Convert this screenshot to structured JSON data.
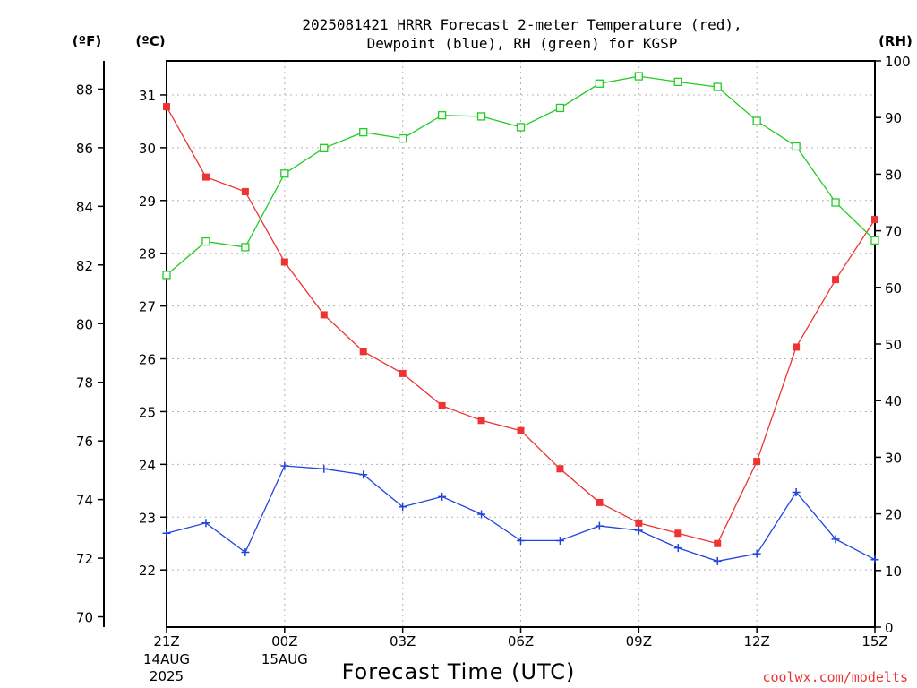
{
  "chart_data": {
    "type": "line",
    "title": "2025081421 HRRR Forecast 2-meter Temperature (red),",
    "subtitle": "Dewpoint (blue), RH (green) for KGSP",
    "xlabel": "Forecast Time (UTC)",
    "credit": "coolwx.com/modelts",
    "units": {
      "left_f": "(ºF)",
      "left_c": "(ºC)",
      "right_rh": "(RH)"
    },
    "x_hours": [
      0,
      1,
      2,
      3,
      4,
      5,
      6,
      7,
      8,
      9,
      10,
      11,
      12,
      13,
      14,
      15,
      16,
      17,
      18
    ],
    "x_ticks": [
      {
        "hour": 0,
        "label": "21Z",
        "sub1": "14AUG",
        "sub2": "2025"
      },
      {
        "hour": 3,
        "label": "00Z",
        "sub1": "15AUG",
        "sub2": ""
      },
      {
        "hour": 6,
        "label": "03Z",
        "sub1": "",
        "sub2": ""
      },
      {
        "hour": 9,
        "label": "06Z",
        "sub1": "",
        "sub2": ""
      },
      {
        "hour": 12,
        "label": "09Z",
        "sub1": "",
        "sub2": ""
      },
      {
        "hour": 15,
        "label": "12Z",
        "sub1": "",
        "sub2": ""
      },
      {
        "hour": 18,
        "label": "15Z",
        "sub1": "",
        "sub2": ""
      }
    ],
    "f_ticks": [
      70,
      72,
      74,
      76,
      78,
      80,
      82,
      84,
      86,
      88
    ],
    "c_ticks": [
      22,
      23,
      24,
      25,
      26,
      27,
      28,
      29,
      30,
      31
    ],
    "rh_ticks": [
      0,
      10,
      20,
      30,
      40,
      50,
      60,
      70,
      80,
      90,
      100
    ],
    "temp_range_f": [
      69.65,
      88.96
    ],
    "rh_range": [
      0,
      100
    ],
    "grid": true,
    "series": [
      {
        "name": "Temperature",
        "unit": "F",
        "color": "#ee3333",
        "marker": "filled-square",
        "values": [
          87.4,
          85.0,
          84.5,
          82.1,
          80.3,
          79.05,
          78.3,
          77.2,
          76.7,
          76.35,
          75.05,
          73.9,
          73.2,
          72.85,
          72.5,
          75.3,
          79.2,
          81.5,
          83.55
        ]
      },
      {
        "name": "Dewpoint",
        "unit": "F",
        "color": "#2244dd",
        "marker": "plus",
        "values": [
          72.85,
          73.2,
          72.2,
          75.15,
          75.05,
          74.85,
          73.75,
          74.1,
          73.5,
          72.6,
          72.6,
          73.1,
          72.95,
          72.35,
          71.9,
          72.15,
          74.25,
          72.65,
          71.95
        ]
      },
      {
        "name": "RH",
        "unit": "%",
        "color": "#22cc22",
        "marker": "open-square",
        "values": [
          62.2,
          68.1,
          67.1,
          80.1,
          84.6,
          87.4,
          86.3,
          90.4,
          90.2,
          88.3,
          91.7,
          96.0,
          97.3,
          96.3,
          95.4,
          89.4,
          84.9,
          75.0,
          68.3
        ]
      }
    ]
  }
}
